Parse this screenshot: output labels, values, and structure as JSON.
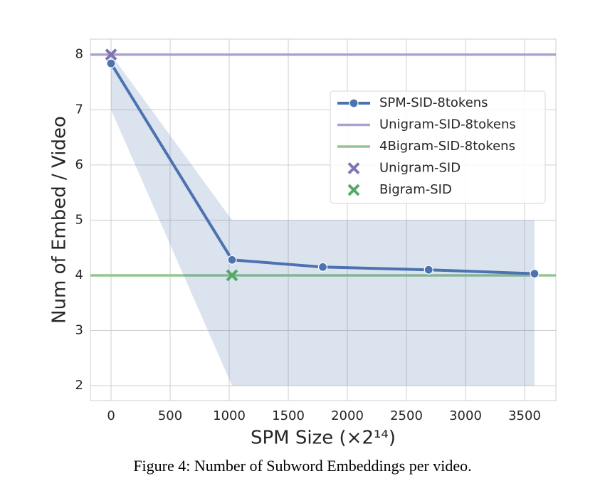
{
  "chart_data": {
    "type": "line",
    "xlabel": "SPM Size (×2¹⁴)",
    "ylabel": "Num of Embed / Video",
    "caption": "Figure 4: Number of Subword Embeddings per video.",
    "xlim": [
      -175,
      3765
    ],
    "ylim": [
      1.73,
      8.28
    ],
    "xticks": [
      0,
      500,
      1000,
      1500,
      2000,
      2500,
      3000,
      3500
    ],
    "yticks": [
      2,
      3,
      4,
      5,
      6,
      7,
      8
    ],
    "grid": true,
    "legend": "upper right",
    "series": [
      {
        "name": "SPM-SID-8tokens",
        "kind": "line",
        "color": "#4c72b0",
        "x": [
          0,
          1024,
          1792,
          2688,
          3584
        ],
        "values": [
          7.84,
          4.28,
          4.15,
          4.1,
          4.03
        ],
        "ci_lower": [
          7,
          2,
          2,
          2,
          2
        ],
        "ci_upper": [
          8,
          5,
          5,
          5,
          5
        ]
      },
      {
        "name": "Unigram-SID-8tokens",
        "kind": "hline",
        "color": "#a9a3d2",
        "values": [
          8
        ]
      },
      {
        "name": "4Bigram-SID-8tokens",
        "kind": "hline",
        "color": "#93c593",
        "values": [
          4
        ]
      },
      {
        "name": "Unigram-SID",
        "kind": "marker",
        "color": "#8172b3",
        "x": [
          0
        ],
        "values": [
          8
        ]
      },
      {
        "name": "Bigram-SID",
        "kind": "marker",
        "color": "#55a868",
        "x": [
          1024
        ],
        "values": [
          4
        ]
      }
    ]
  }
}
